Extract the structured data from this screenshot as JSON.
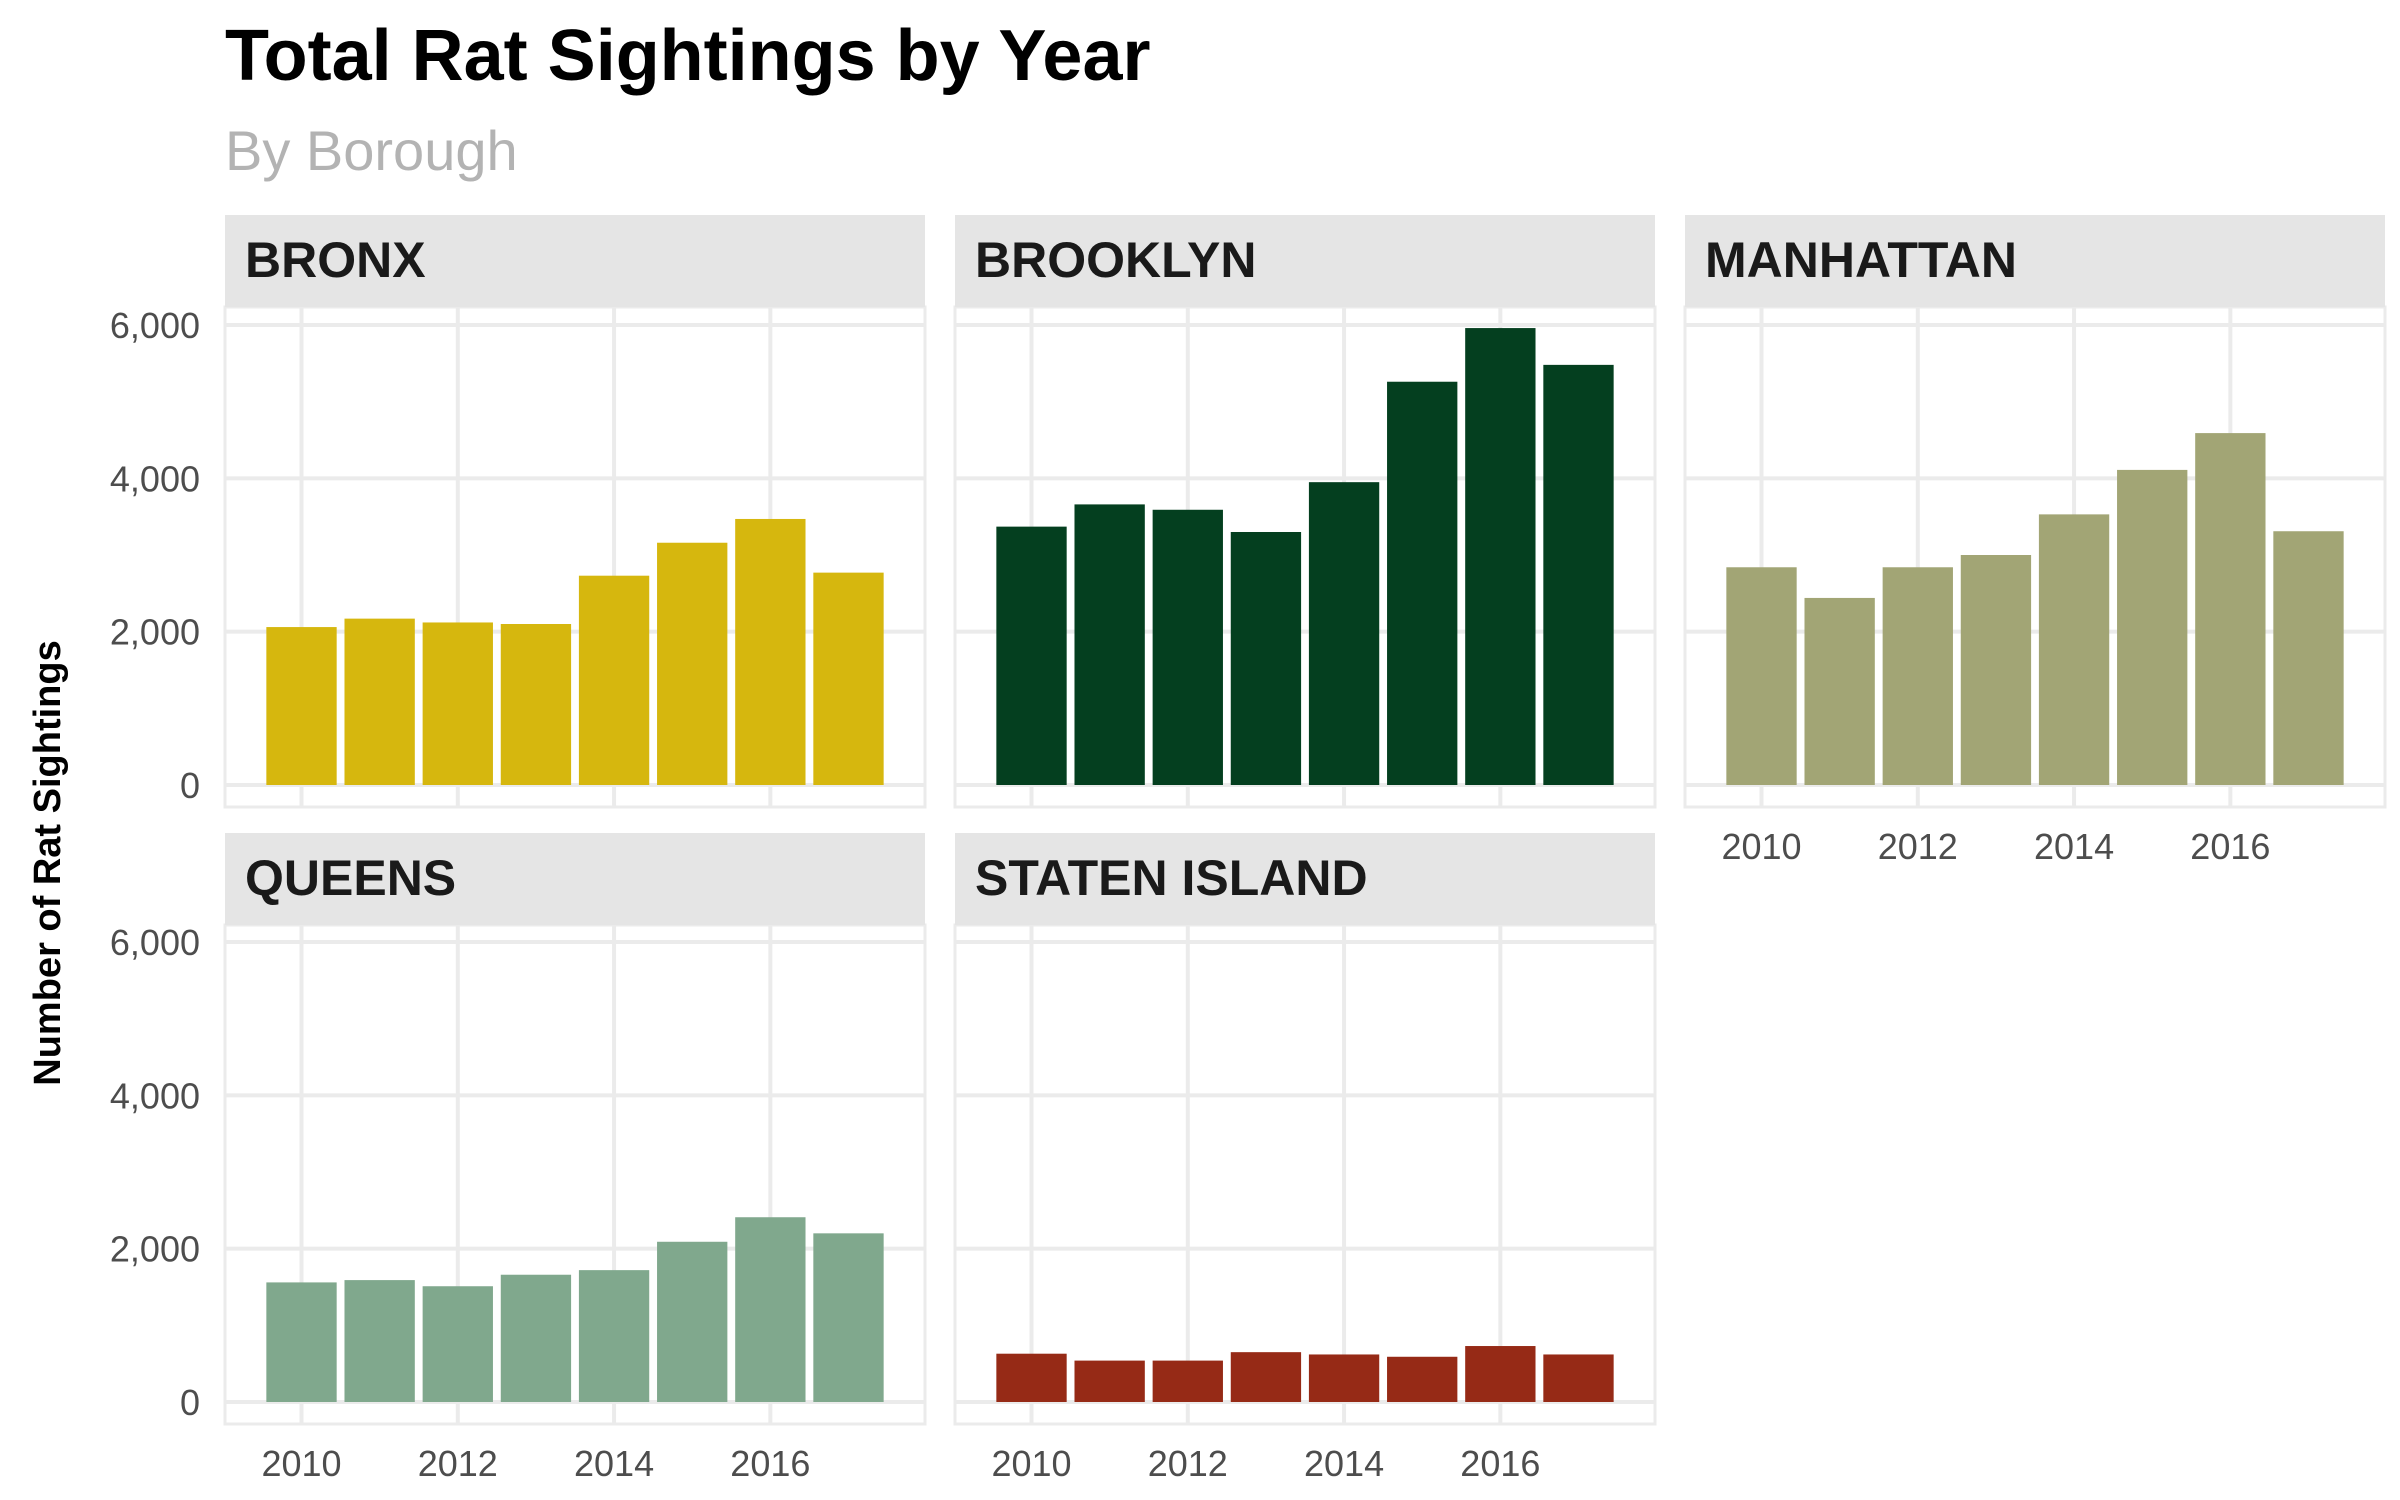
{
  "chart_data": {
    "type": "bar",
    "title": "Total Rat Sightings by Year",
    "subtitle": "By Borough",
    "ylabel": "Number of Rat Sightings",
    "xlabel": "",
    "x": [
      2010,
      2011,
      2012,
      2013,
      2014,
      2015,
      2016,
      2017
    ],
    "x_tick_labels": [
      "2010",
      "2012",
      "2014",
      "2016"
    ],
    "y_tick_labels": [
      "0",
      "2,000",
      "4,000",
      "6,000"
    ],
    "ylim": [
      0,
      6000
    ],
    "grid": true,
    "layout": "facet grid, 3 columns",
    "series": [
      {
        "name": "BRONX",
        "color": "#D6B70E",
        "values": [
          2060,
          2170,
          2120,
          2100,
          2730,
          3160,
          3470,
          2770
        ]
      },
      {
        "name": "BROOKLYN",
        "color": "#043F1F",
        "values": [
          3370,
          3660,
          3590,
          3300,
          3950,
          5260,
          5960,
          5480
        ]
      },
      {
        "name": "MANHATTAN",
        "color": "#A2A575",
        "values": [
          2840,
          2440,
          2840,
          3000,
          3530,
          4110,
          4590,
          3310
        ]
      },
      {
        "name": "QUEENS",
        "color": "#80A88D",
        "values": [
          1560,
          1590,
          1510,
          1660,
          1720,
          2090,
          2410,
          2200
        ]
      },
      {
        "name": "STATEN ISLAND",
        "color": "#962A16",
        "values": [
          630,
          540,
          540,
          650,
          620,
          590,
          730,
          620
        ]
      }
    ]
  }
}
